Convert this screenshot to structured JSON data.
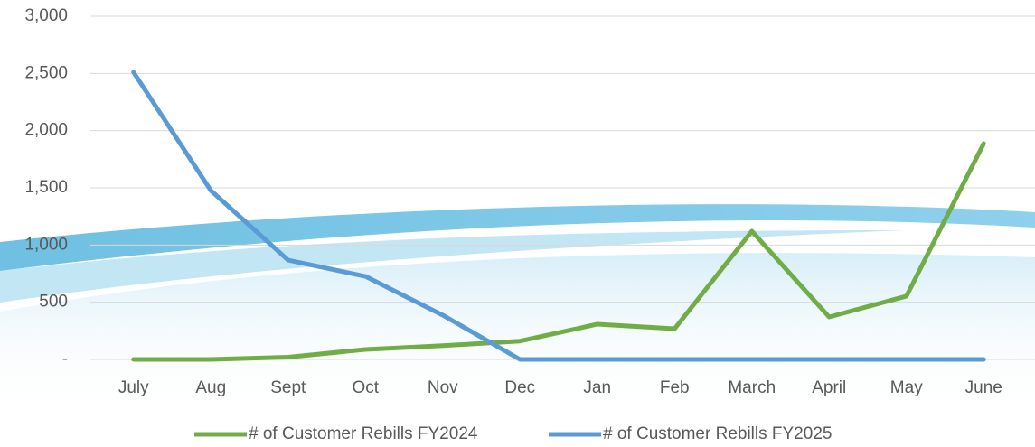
{
  "chart_data": {
    "type": "line",
    "categories": [
      "July",
      "Aug",
      "Sept",
      "Oct",
      "Nov",
      "Dec",
      "Jan",
      "Feb",
      "March",
      "April",
      "May",
      "June"
    ],
    "series": [
      {
        "name": "# of Customer Rebills FY2024",
        "color": "#70ad47",
        "values": [
          0,
          0,
          20,
          87,
          120,
          160,
          308,
          268,
          1121,
          371,
          553,
          1887
        ]
      },
      {
        "name": "# of Customer Rebills FY2025",
        "color": "#5b9bd5",
        "values": [
          2510,
          1476,
          868,
          726,
          387,
          0,
          0,
          0,
          0,
          0,
          0,
          0
        ]
      }
    ],
    "ylim": [
      0,
      3000
    ],
    "yticks": [
      {
        "value": 0,
        "label": "-"
      },
      500,
      {
        "value": 1000,
        "label": "1,000"
      },
      {
        "value": 1500,
        "label": "1,500"
      },
      {
        "value": 2000,
        "label": "2,000"
      },
      {
        "value": 2500,
        "label": "2,500"
      },
      {
        "value": 3000,
        "label": "3,000"
      }
    ],
    "grid": true,
    "legend": "bottom"
  }
}
